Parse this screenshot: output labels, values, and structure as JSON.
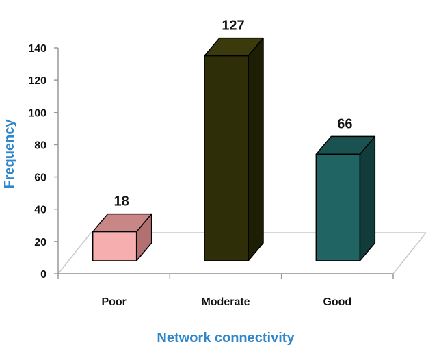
{
  "chart_data": {
    "type": "bar",
    "categories": [
      "Poor",
      "Moderate",
      "Good"
    ],
    "values": [
      18,
      127,
      66
    ],
    "data_labels": [
      "18",
      "127",
      "66"
    ],
    "xlabel": "Network connectivity",
    "ylabel": "Frequency",
    "ylim": [
      0,
      140
    ],
    "yticks": [
      "0",
      "20",
      "40",
      "60",
      "80",
      "100",
      "120",
      "140"
    ],
    "grid": false,
    "legend": "none",
    "style": "3d-columns",
    "colors": {
      "front": [
        "#f6aeae",
        "#2e2e08",
        "#216464"
      ],
      "top": [
        "#c98686",
        "#3a3a0c",
        "#1a5252"
      ],
      "side": [
        "#b37070",
        "#1e1e05",
        "#123c3c"
      ],
      "axis_title": "#2f86c8"
    }
  }
}
